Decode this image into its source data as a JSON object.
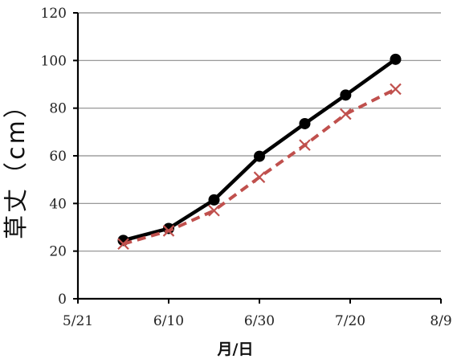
{
  "chart_data": {
    "type": "line",
    "title": "",
    "xlabel": "月/日",
    "ylabel": "草丈（cm）",
    "x_axis": {
      "kind": "date",
      "min": "2000-05-21",
      "max": "2000-08-09",
      "ticks": [
        {
          "date": "2000-05-21",
          "label": "5/21"
        },
        {
          "date": "2000-06-10",
          "label": "6/10"
        },
        {
          "date": "2000-06-30",
          "label": "6/30"
        },
        {
          "date": "2000-07-20",
          "label": "7/20"
        },
        {
          "date": "2000-08-09",
          "label": "8/9"
        }
      ]
    },
    "ylim": [
      0,
      120
    ],
    "yticks": [
      0,
      20,
      40,
      60,
      80,
      100,
      120
    ],
    "grid": {
      "horizontal": true,
      "vertical": false
    },
    "legend": "none",
    "series": [
      {
        "color": "#000000",
        "line_style": "solid",
        "marker": "circle",
        "points": [
          {
            "x": "2000-05-31",
            "y": 24.5
          },
          {
            "x": "2000-06-10",
            "y": 29.5
          },
          {
            "x": "2000-06-20",
            "y": 41.5
          },
          {
            "x": "2000-06-30",
            "y": 59.8
          },
          {
            "x": "2000-07-10",
            "y": 73.5
          },
          {
            "x": "2000-07-19",
            "y": 85.5
          },
          {
            "x": "2000-07-30",
            "y": 100.5
          }
        ]
      },
      {
        "color": "#c0504d",
        "line_style": "dashed",
        "marker": "x",
        "points": [
          {
            "x": "2000-05-31",
            "y": 23.0
          },
          {
            "x": "2000-06-10",
            "y": 28.5
          },
          {
            "x": "2000-06-20",
            "y": 37.0
          },
          {
            "x": "2000-06-30",
            "y": 51.0
          },
          {
            "x": "2000-07-10",
            "y": 64.5
          },
          {
            "x": "2000-07-19",
            "y": 77.5
          },
          {
            "x": "2000-07-30",
            "y": 88.0
          }
        ]
      }
    ]
  }
}
